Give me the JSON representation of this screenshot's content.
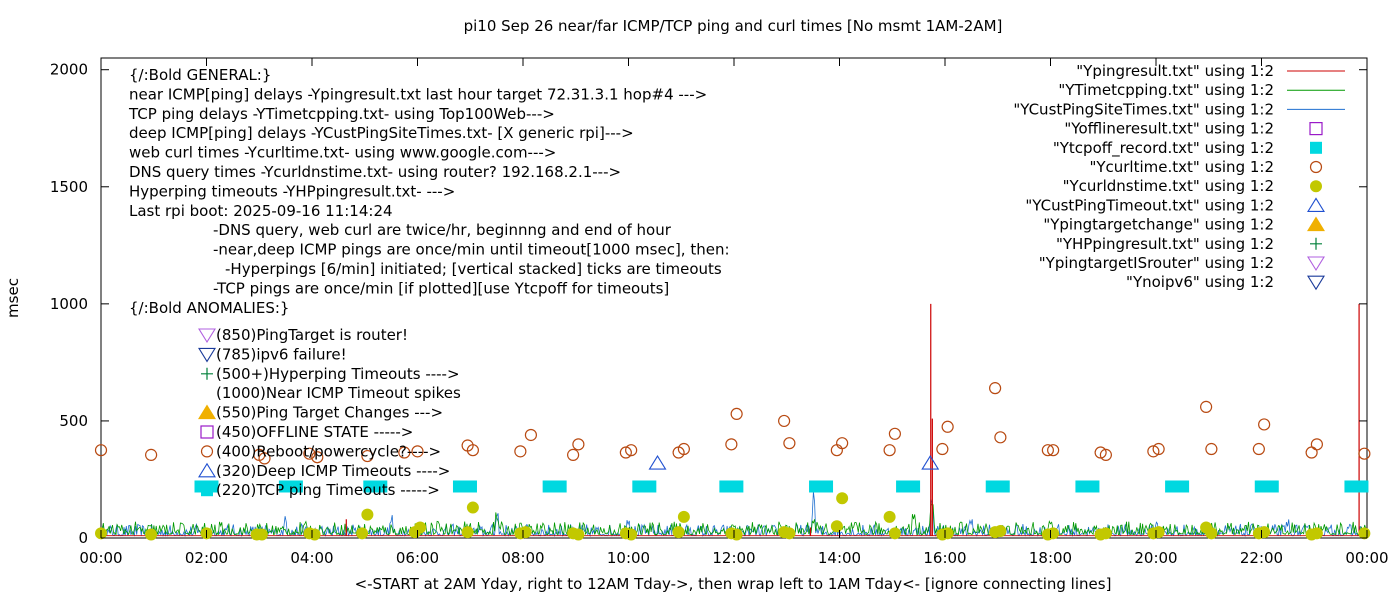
{
  "chart_data": {
    "type": "scatter",
    "title": "pi10 Sep 26  near/far ICMP/TCP ping and curl times [No msmt 1AM-2AM]",
    "xlabel": "<-START at 2AM Yday, right to 12AM Tday->, then wrap left to 1AM Tday<- [ignore connecting lines]",
    "ylabel": "msec",
    "xlim": [
      "00:00",
      "24:00"
    ],
    "ylim": [
      0,
      2050
    ],
    "xticks": [
      "00:00",
      "02:00",
      "04:00",
      "06:00",
      "08:00",
      "10:00",
      "12:00",
      "14:00",
      "16:00",
      "18:00",
      "20:00",
      "22:00",
      "00:00"
    ],
    "yticks": [
      0,
      500,
      1000,
      1500,
      2000
    ],
    "grid": false,
    "legend_position": "top-right",
    "annotations": [
      "{/:Bold GENERAL:}",
      "near ICMP[ping] delays -Ypingresult.txt last hour target 72.31.3.1 hop#4 --->",
      "TCP ping delays -YTimetcpping.txt- using Top100Web--->",
      "deep ICMP[ping] delays -YCustPingSiteTimes.txt- [X generic rpi]--->",
      "web curl times -Ycurltime.txt- using www.google.com--->",
      "DNS query times -Ycurldnstime.txt- using router? 192.168.2.1--->",
      "Hyperping timeouts -YHPpingresult.txt- --->",
      "Last rpi boot: 2025-09-16 11:14:24",
      "-DNS query, web curl are twice/hr, beginnng and end of hour",
      "-near,deep ICMP pings are once/min until timeout[1000 msec], then:",
      "-Hyperpings [6/min] initiated; [vertical stacked] ticks are timeouts",
      "-TCP pings are once/min [if plotted][use Ytcpoff for timeouts]",
      "{/:Bold ANOMALIES:}"
    ],
    "anomalies": [
      {
        "marker": "tri-down-violet",
        "text": "(850)PingTarget is router!"
      },
      {
        "marker": "tri-down-navy",
        "text": "(785)ipv6 failure!"
      },
      {
        "marker": "plus-green",
        "text": "(500+)Hyperping Timeouts ---->"
      },
      {
        "marker": "none",
        "text": "(1000)Near ICMP Timeout spikes"
      },
      {
        "marker": "tri-up-orange",
        "text": "(550)Ping Target Changes --->"
      },
      {
        "marker": "square-open-purple",
        "text": "(450)OFFLINE STATE ----->"
      },
      {
        "marker": "circle-open-brown",
        "text": "(400)Reboot/powercycle?---->"
      },
      {
        "marker": "tri-up-blue",
        "text": "(320)Deep ICMP Timeouts ---->"
      },
      {
        "marker": "square-cyan",
        "text": "(220)TCP ping Timeouts ----->"
      }
    ],
    "legend": [
      {
        "label": "\"Ypingresult.txt\" using 1:2",
        "style": "line",
        "color": "#cc0000"
      },
      {
        "label": "\"YTimetcpping.txt\" using 1:2",
        "style": "line",
        "color": "#009900"
      },
      {
        "label": "\"YCustPingSiteTimes.txt\" using 1:2",
        "style": "line",
        "color": "#1f6fd0"
      },
      {
        "label": "\"Yofflineresult.txt\" using 1:2",
        "style": "square-open",
        "color": "#9a1ac8"
      },
      {
        "label": "\"Ytcpoff_record.txt\" using 1:2",
        "style": "square",
        "color": "#00d8e0"
      },
      {
        "label": "\"Ycurltime.txt\" using 1:2",
        "style": "circle-open",
        "color": "#b84a12"
      },
      {
        "label": "\"Ycurldnstime.txt\" using 1:2",
        "style": "circle",
        "color": "#c2c800"
      },
      {
        "label": "\"YCustPingTimeout.txt\" using 1:2",
        "style": "tri-up-open",
        "color": "#2050d0"
      },
      {
        "label": "\"Ypingtargetchange\" using 1:2",
        "style": "tri-up",
        "color": "#f0b000"
      },
      {
        "label": "\"YHPpingresult.txt\" using 1:2",
        "style": "plus",
        "color": "#00803a"
      },
      {
        "label": "\"YpingtargetISrouter\" using 1:2",
        "style": "tri-down-open",
        "color": "#b060e0"
      },
      {
        "label": "\"Ynoipv6\" using 1:2",
        "style": "tri-down-open",
        "color": "#1a3a9a"
      }
    ],
    "series": [
      {
        "name": "\"Ypingresult.txt\" using 1:2",
        "type": "spikes",
        "baseline": 10,
        "points": [
          [
            4.65,
            80
          ],
          [
            13.45,
            45
          ],
          [
            15.73,
            1000
          ],
          [
            15.76,
            510
          ],
          [
            23.85,
            1000
          ]
        ]
      },
      {
        "name": "\"YTimetcpping.txt\" using 1:2",
        "type": "noise",
        "base_range": [
          15,
          70
        ],
        "points": [
          [
            0.0,
            40
          ],
          [
            2.0,
            25
          ],
          [
            4.0,
            30
          ],
          [
            6.4,
            90
          ],
          [
            7.5,
            120
          ],
          [
            10.2,
            60
          ],
          [
            12.0,
            70
          ],
          [
            13.5,
            110
          ],
          [
            15.4,
            150
          ],
          [
            15.75,
            170
          ],
          [
            18.0,
            80
          ],
          [
            21.0,
            90
          ],
          [
            23.9,
            50
          ]
        ]
      },
      {
        "name": "\"YCustPingSiteTimes.txt\" using 1:2",
        "type": "noise",
        "base_range": [
          10,
          60
        ],
        "points": [
          [
            3.5,
            120
          ],
          [
            5.5,
            100
          ],
          [
            7.5,
            130
          ],
          [
            10.0,
            110
          ],
          [
            13.5,
            200
          ],
          [
            15.75,
            190
          ],
          [
            16.5,
            90
          ],
          [
            20.0,
            80
          ],
          [
            22.5,
            90
          ]
        ]
      },
      {
        "name": "\"Ytcpoff_record.txt\" using 1:2",
        "points": [
          [
            2.0,
            220
          ],
          [
            3.6,
            220
          ],
          [
            5.2,
            220
          ],
          [
            6.9,
            220
          ],
          [
            8.6,
            220
          ],
          [
            10.3,
            220
          ],
          [
            11.95,
            220
          ],
          [
            13.65,
            220
          ],
          [
            15.3,
            220
          ],
          [
            17.0,
            220
          ],
          [
            18.7,
            220
          ],
          [
            20.4,
            220
          ],
          [
            22.1,
            220
          ],
          [
            23.8,
            220
          ]
        ]
      },
      {
        "name": "\"Ycurltime.txt\" using 1:2",
        "points": [
          [
            0.0,
            375
          ],
          [
            0.95,
            355
          ],
          [
            3.0,
            355
          ],
          [
            3.1,
            340
          ],
          [
            3.95,
            360
          ],
          [
            4.1,
            345
          ],
          [
            5.05,
            350
          ],
          [
            5.75,
            365
          ],
          [
            6.0,
            370
          ],
          [
            6.95,
            395
          ],
          [
            7.05,
            375
          ],
          [
            7.95,
            370
          ],
          [
            8.15,
            440
          ],
          [
            8.95,
            355
          ],
          [
            9.05,
            400
          ],
          [
            9.95,
            365
          ],
          [
            10.05,
            375
          ],
          [
            10.95,
            365
          ],
          [
            11.05,
            380
          ],
          [
            11.95,
            400
          ],
          [
            12.05,
            530
          ],
          [
            12.95,
            500
          ],
          [
            13.05,
            405
          ],
          [
            13.95,
            375
          ],
          [
            14.05,
            405
          ],
          [
            14.95,
            375
          ],
          [
            15.05,
            445
          ],
          [
            15.95,
            380
          ],
          [
            16.05,
            475
          ],
          [
            16.95,
            640
          ],
          [
            17.05,
            430
          ],
          [
            17.95,
            375
          ],
          [
            18.05,
            375
          ],
          [
            18.95,
            365
          ],
          [
            19.05,
            355
          ],
          [
            19.95,
            370
          ],
          [
            20.05,
            380
          ],
          [
            20.95,
            560
          ],
          [
            21.05,
            380
          ],
          [
            21.95,
            380
          ],
          [
            22.05,
            485
          ],
          [
            22.95,
            365
          ],
          [
            23.05,
            400
          ],
          [
            23.95,
            360
          ]
        ]
      },
      {
        "name": "\"Ycurldnstime.txt\" using 1:2",
        "points": [
          [
            0.0,
            20
          ],
          [
            0.95,
            15
          ],
          [
            2.0,
            20
          ],
          [
            2.95,
            15
          ],
          [
            3.05,
            15
          ],
          [
            3.95,
            20
          ],
          [
            4.05,
            15
          ],
          [
            4.95,
            20
          ],
          [
            5.05,
            100
          ],
          [
            5.95,
            25
          ],
          [
            6.05,
            45
          ],
          [
            6.95,
            25
          ],
          [
            7.05,
            130
          ],
          [
            7.95,
            20
          ],
          [
            8.05,
            25
          ],
          [
            8.95,
            20
          ],
          [
            9.05,
            15
          ],
          [
            9.95,
            20
          ],
          [
            10.05,
            15
          ],
          [
            10.95,
            25
          ],
          [
            11.05,
            90
          ],
          [
            11.95,
            20
          ],
          [
            12.05,
            15
          ],
          [
            12.95,
            25
          ],
          [
            13.05,
            20
          ],
          [
            13.95,
            50
          ],
          [
            14.05,
            170
          ],
          [
            14.95,
            90
          ],
          [
            15.05,
            20
          ],
          [
            15.95,
            15
          ],
          [
            16.05,
            20
          ],
          [
            16.95,
            25
          ],
          [
            17.05,
            30
          ],
          [
            17.95,
            15
          ],
          [
            18.05,
            20
          ],
          [
            18.95,
            15
          ],
          [
            19.05,
            20
          ],
          [
            19.95,
            20
          ],
          [
            20.05,
            25
          ],
          [
            20.95,
            45
          ],
          [
            21.05,
            20
          ],
          [
            21.95,
            20
          ],
          [
            22.05,
            25
          ],
          [
            22.95,
            15
          ],
          [
            23.05,
            20
          ],
          [
            23.95,
            20
          ]
        ]
      },
      {
        "name": "\"YCustPingTimeout.txt\" using 1:2",
        "points": [
          [
            10.55,
            320
          ],
          [
            15.72,
            320
          ]
        ]
      }
    ]
  },
  "colors": {
    "ping_red": "#cc0000",
    "tcp_green": "#009900",
    "custping_blue": "#1f6fd0",
    "offline_purple": "#9a1ac8",
    "tcpoff_cyan": "#00d8e0",
    "curl_brown": "#b84a12",
    "dns_olive": "#c2c800",
    "deeptimeout_blue": "#2050d0",
    "target_orange": "#f0b000",
    "hyperping_green": "#00803a",
    "router_violet": "#b060e0",
    "ipv6_navy": "#1a3a9a"
  }
}
